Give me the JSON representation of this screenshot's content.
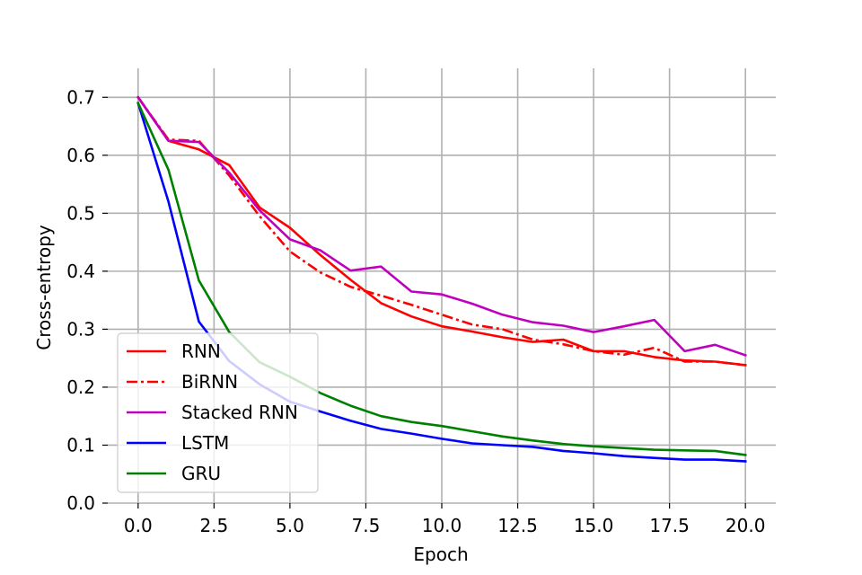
{
  "chart_data": {
    "type": "line",
    "title": "",
    "xlabel": "Epoch",
    "ylabel": "Cross-entropy",
    "xlim": [
      -1,
      21
    ],
    "ylim": [
      0,
      0.75
    ],
    "xticks": [
      0.0,
      2.5,
      5.0,
      7.5,
      10.0,
      12.5,
      15.0,
      17.5,
      20.0
    ],
    "xtick_labels": [
      "0.0",
      "2.5",
      "5.0",
      "7.5",
      "10.0",
      "12.5",
      "15.0",
      "17.5",
      "20.0"
    ],
    "yticks": [
      0.0,
      0.1,
      0.2,
      0.3,
      0.4,
      0.5,
      0.6,
      0.7
    ],
    "ytick_labels": [
      "0.0",
      "0.1",
      "0.2",
      "0.3",
      "0.4",
      "0.5",
      "0.6",
      "0.7"
    ],
    "grid": true,
    "legend_position": "lower-left",
    "x": [
      0,
      1,
      2,
      3,
      4,
      5,
      6,
      7,
      8,
      9,
      10,
      11,
      12,
      13,
      14,
      15,
      16,
      17,
      18,
      19,
      20
    ],
    "series": [
      {
        "name": "RNN",
        "color": "#ff0000",
        "style": "solid",
        "values": [
          0.7,
          0.625,
          0.61,
          0.583,
          0.51,
          0.475,
          0.428,
          0.385,
          0.345,
          0.322,
          0.305,
          0.296,
          0.286,
          0.278,
          0.282,
          0.262,
          0.262,
          0.252,
          0.246,
          0.244,
          0.238
        ]
      },
      {
        "name": "BiRNN",
        "color": "#ff0000",
        "style": "dashdot",
        "values": [
          0.7,
          0.627,
          0.625,
          0.565,
          0.495,
          0.434,
          0.398,
          0.373,
          0.358,
          0.342,
          0.325,
          0.308,
          0.3,
          0.282,
          0.274,
          0.262,
          0.256,
          0.268,
          0.244,
          0.244,
          0.238
        ]
      },
      {
        "name": "Stacked RNN",
        "color": "#bf00bf",
        "style": "solid",
        "values": [
          0.7,
          0.625,
          0.623,
          0.57,
          0.505,
          0.455,
          0.436,
          0.401,
          0.408,
          0.365,
          0.36,
          0.344,
          0.325,
          0.312,
          0.306,
          0.295,
          0.305,
          0.316,
          0.262,
          0.273,
          0.255
        ]
      },
      {
        "name": "LSTM",
        "color": "#0000ff",
        "style": "solid",
        "values": [
          0.69,
          0.52,
          0.313,
          0.245,
          0.205,
          0.175,
          0.158,
          0.142,
          0.128,
          0.12,
          0.111,
          0.103,
          0.1,
          0.097,
          0.09,
          0.086,
          0.081,
          0.078,
          0.075,
          0.075,
          0.072
        ]
      },
      {
        "name": "GRU",
        "color": "#008000",
        "style": "solid",
        "values": [
          0.69,
          0.575,
          0.384,
          0.295,
          0.243,
          0.218,
          0.19,
          0.168,
          0.15,
          0.14,
          0.133,
          0.124,
          0.115,
          0.108,
          0.102,
          0.098,
          0.095,
          0.092,
          0.091,
          0.09,
          0.083
        ]
      }
    ]
  }
}
